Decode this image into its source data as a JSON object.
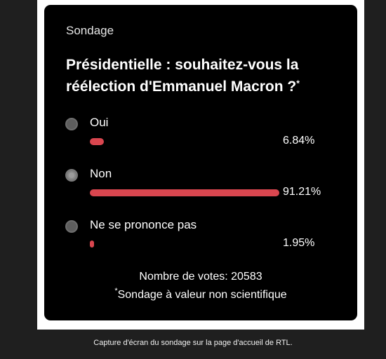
{
  "poll": {
    "label": "Sondage",
    "question": "Présidentielle : souhaitez-vous la réélection d'Emmanuel Macron ?",
    "question_mark": "*",
    "options": [
      {
        "label": "Oui",
        "percent_text": "6.84%",
        "percent": 6.84,
        "selected": false
      },
      {
        "label": "Non",
        "percent_text": "91.21%",
        "percent": 91.21,
        "selected": true
      },
      {
        "label": "Ne se prononce pas",
        "percent_text": "1.95%",
        "percent": 1.95,
        "selected": false
      }
    ],
    "votes": "Nombre de votes: 20583",
    "disclaimer_mark": "*",
    "disclaimer": "Sondage à valeur non scientifique"
  },
  "colors": {
    "bar": "#d9464f",
    "card_background": "#000000",
    "page_background": "#1f1f1f"
  },
  "caption": "Capture d'écran du sondage sur la page d'accueil de RTL."
}
